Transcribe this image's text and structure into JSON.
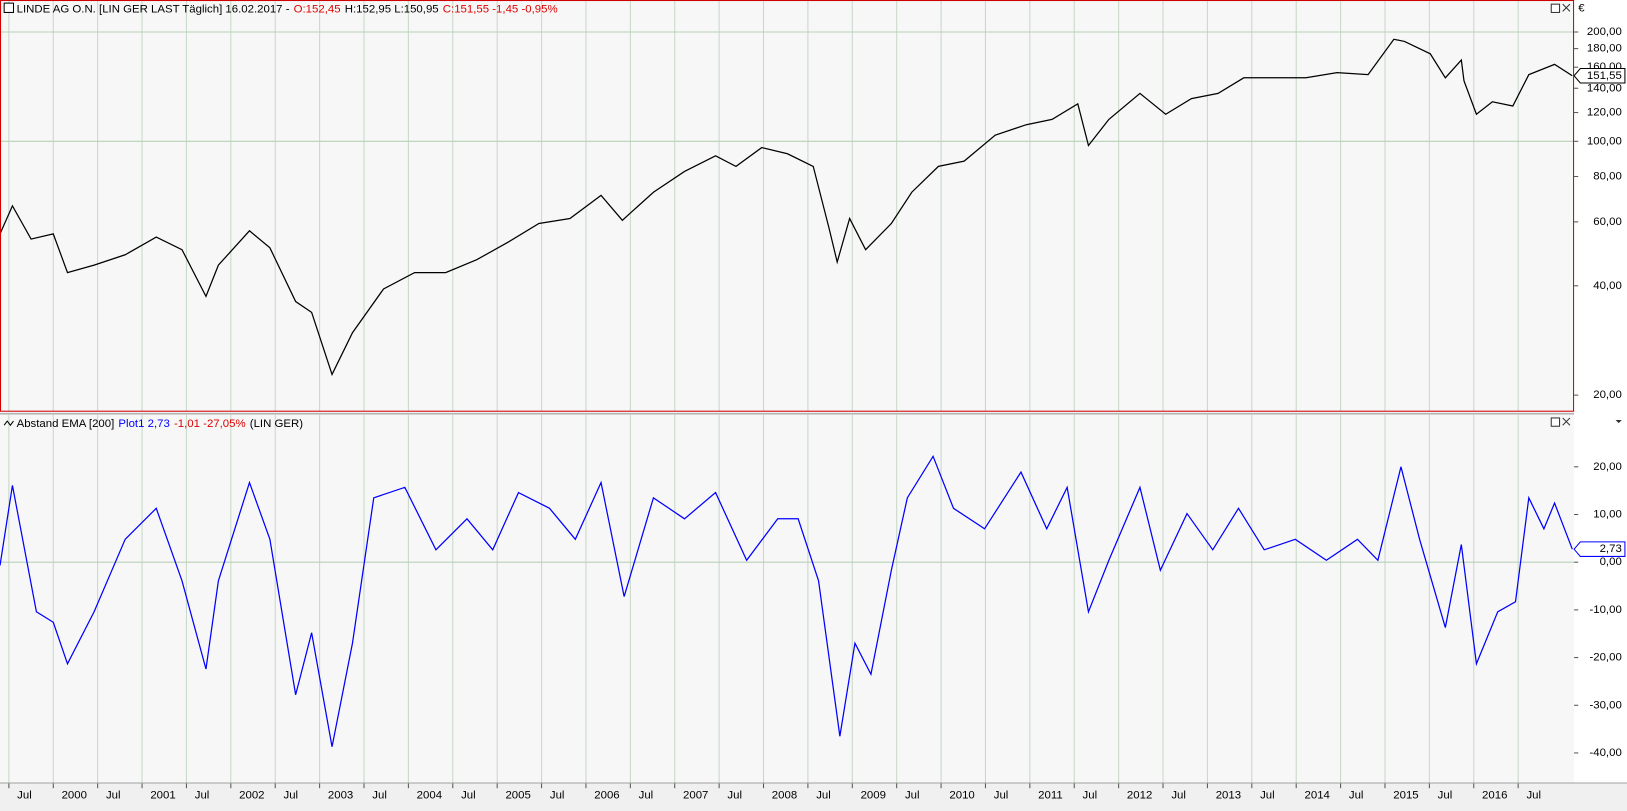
{
  "chart_data": [
    {
      "type": "line",
      "header": [
        {
          "text": "LINDE AG O.N. [LIN GER LAST Täglich] 16.02.2017 -",
          "color": "#000000"
        },
        {
          "text": "O:152,45",
          "color": "#e00000"
        },
        {
          "text": "H:152,95 L:150,95",
          "color": "#000000"
        },
        {
          "text": "C:151,55 -1,45 -0,95%",
          "color": "#e00000"
        }
      ],
      "log_scale": true,
      "color": "#000000",
      "x": [
        1999.4,
        1999.54,
        1999.75,
        2000.0,
        2000.16,
        2000.46,
        2000.81,
        2001.16,
        2001.45,
        2001.72,
        2001.86,
        2002.21,
        2002.44,
        2002.73,
        2002.91,
        2003.14,
        2003.37,
        2003.72,
        2004.07,
        2004.42,
        2004.77,
        2005.12,
        2005.47,
        2005.82,
        2006.17,
        2006.41,
        2006.76,
        2007.11,
        2007.46,
        2007.69,
        2007.98,
        2008.27,
        2008.56,
        2008.74,
        2008.83,
        2008.97,
        2009.15,
        2009.44,
        2009.67,
        2009.97,
        2010.26,
        2010.61,
        2010.96,
        2011.25,
        2011.54,
        2011.66,
        2011.89,
        2012.24,
        2012.53,
        2012.82,
        2013.12,
        2013.41,
        2013.76,
        2014.11,
        2014.46,
        2014.81,
        2015.1,
        2015.22,
        2015.51,
        2015.68,
        2015.86,
        2015.89,
        2016.03,
        2016.21,
        2016.44,
        2016.62,
        2016.91,
        2017.11
      ],
      "values": [
        55.6,
        66.4,
        53.8,
        55.6,
        43.5,
        45.6,
        48.7,
        54.5,
        50.3,
        37.4,
        45.6,
        56.7,
        50.9,
        36.2,
        33.8,
        22.8,
        29.7,
        39.2,
        43.5,
        43.5,
        47.2,
        52.7,
        59.4,
        61.3,
        71.0,
        60.6,
        72.4,
        82.6,
        91.2,
        85.3,
        96.1,
        92.4,
        85.3,
        57.4,
        46.5,
        61.3,
        50.3,
        59.4,
        72.4,
        85.3,
        88.2,
        104.0,
        111.1,
        114.9,
        126.8,
        97.4,
        114.9,
        135.5,
        118.7,
        131.1,
        135.5,
        149.6,
        149.6,
        149.6,
        154.6,
        152.6,
        191.0,
        188.4,
        174.2,
        149.6,
        167.4,
        146.7,
        118.7,
        128.5,
        125.1,
        152.6,
        162.9,
        151.55
      ],
      "last_value_label": "151,55",
      "xlim": [
        1999.4,
        2017.13
      ],
      "xticks": [
        {
          "value": 1999.5,
          "label": "Jul"
        },
        2000,
        {
          "value": 2000.5,
          "label": "Jul"
        },
        2001,
        {
          "value": 2001.5,
          "label": "Jul"
        },
        2002,
        {
          "value": 2002.5,
          "label": "Jul"
        },
        2003,
        {
          "value": 2003.5,
          "label": "Jul"
        },
        2004,
        {
          "value": 2004.5,
          "label": "Jul"
        },
        2005,
        {
          "value": 2005.5,
          "label": "Jul"
        },
        2006,
        {
          "value": 2006.5,
          "label": "Jul"
        },
        2007,
        {
          "value": 2007.5,
          "label": "Jul"
        },
        2008,
        {
          "value": 2008.5,
          "label": "Jul"
        },
        2009,
        {
          "value": 2009.5,
          "label": "Jul"
        },
        2010,
        {
          "value": 2010.5,
          "label": "Jul"
        },
        2011,
        {
          "value": 2011.5,
          "label": "Jul"
        },
        2012,
        {
          "value": 2012.5,
          "label": "Jul"
        },
        2013,
        {
          "value": 2013.5,
          "label": "Jul"
        },
        2014,
        {
          "value": 2014.5,
          "label": "Jul"
        },
        2015,
        {
          "value": 2015.5,
          "label": "Jul"
        },
        2016,
        {
          "value": 2016.5,
          "label": "Jul"
        }
      ],
      "ylim": [
        18,
        245
      ],
      "yticks": [
        {
          "value": 20,
          "label": "20,00"
        },
        {
          "value": 40,
          "label": "40,00"
        },
        {
          "value": 60,
          "label": "60,00"
        },
        {
          "value": 80,
          "label": "80,00"
        },
        {
          "value": 100,
          "label": "100,00"
        },
        {
          "value": 120,
          "label": "120,00"
        },
        {
          "value": 140,
          "label": "140,00"
        },
        {
          "value": 160,
          "label": "160,00"
        },
        {
          "value": 180,
          "label": "180,00"
        },
        {
          "value": 200,
          "label": "200,00"
        }
      ],
      "grid_lines_at": [
        100,
        200
      ]
    },
    {
      "type": "line",
      "header": [
        {
          "text": "Abstand EMA [200]",
          "color": "#000000"
        },
        {
          "text": "Plot1 2,73",
          "color": "#0000ff"
        },
        {
          "text": "-1,01 -27,05%",
          "color": "#e00000"
        },
        {
          "text": "(LIN GER)",
          "color": "#000000"
        }
      ],
      "log_scale": false,
      "color": "#0000ff",
      "x": [
        1999.4,
        1999.54,
        1999.81,
        2000.0,
        2000.16,
        2000.46,
        2000.81,
        2001.16,
        2001.45,
        2001.72,
        2001.86,
        2002.21,
        2002.44,
        2002.73,
        2002.91,
        2003.14,
        2003.37,
        2003.61,
        2003.96,
        2004.31,
        2004.66,
        2004.95,
        2005.24,
        2005.59,
        2005.88,
        2006.17,
        2006.43,
        2006.76,
        2007.11,
        2007.46,
        2007.81,
        2008.16,
        2008.39,
        2008.62,
        2008.86,
        2009.03,
        2009.21,
        2009.44,
        2009.62,
        2009.91,
        2010.14,
        2010.49,
        2010.9,
        2011.19,
        2011.42,
        2011.66,
        2011.89,
        2012.24,
        2012.47,
        2012.77,
        2013.06,
        2013.35,
        2013.64,
        2013.99,
        2014.34,
        2014.69,
        2014.92,
        2015.18,
        2015.39,
        2015.68,
        2015.86,
        2016.03,
        2016.27,
        2016.47,
        2016.62,
        2016.79,
        2016.91,
        2017.11
      ],
      "values": [
        -0.7,
        16.1,
        -10.4,
        -12.6,
        -21.3,
        -10.4,
        4.8,
        11.3,
        -3.9,
        -22.4,
        -3.9,
        16.7,
        4.8,
        -27.8,
        -14.8,
        -38.7,
        -17.0,
        13.5,
        15.7,
        2.6,
        9.1,
        2.6,
        14.6,
        11.3,
        4.8,
        16.7,
        -7.2,
        13.5,
        9.1,
        14.6,
        0.4,
        9.1,
        9.1,
        -3.9,
        -36.5,
        -17.0,
        -23.5,
        -1.7,
        13.5,
        22.2,
        11.3,
        7.0,
        18.9,
        7.0,
        15.7,
        -10.4,
        0.4,
        15.7,
        -1.7,
        10.2,
        2.6,
        11.3,
        2.6,
        4.8,
        0.4,
        4.8,
        0.4,
        20.0,
        4.8,
        -13.7,
        3.7,
        -21.3,
        -10.4,
        -8.3,
        13.5,
        7.0,
        12.4,
        2.73
      ],
      "last_value_label": "2,73",
      "xlim": [
        1999.4,
        2017.13
      ],
      "xticks": [
        {
          "value": 1999.5,
          "label": "Jul"
        },
        2000,
        {
          "value": 2000.5,
          "label": "Jul"
        },
        2001,
        {
          "value": 2001.5,
          "label": "Jul"
        },
        2002,
        {
          "value": 2002.5,
          "label": "Jul"
        },
        2003,
        {
          "value": 2003.5,
          "label": "Jul"
        },
        2004,
        {
          "value": 2004.5,
          "label": "Jul"
        },
        2005,
        {
          "value": 2005.5,
          "label": "Jul"
        },
        2006,
        {
          "value": 2006.5,
          "label": "Jul"
        },
        2007,
        {
          "value": 2007.5,
          "label": "Jul"
        },
        2008,
        {
          "value": 2008.5,
          "label": "Jul"
        },
        2009,
        {
          "value": 2009.5,
          "label": "Jul"
        },
        2010,
        {
          "value": 2010.5,
          "label": "Jul"
        },
        2011,
        {
          "value": 2011.5,
          "label": "Jul"
        },
        2012,
        {
          "value": 2012.5,
          "label": "Jul"
        },
        2013,
        {
          "value": 2013.5,
          "label": "Jul"
        },
        2014,
        {
          "value": 2014.5,
          "label": "Jul"
        },
        2015,
        {
          "value": 2015.5,
          "label": "Jul"
        },
        2016,
        {
          "value": 2016.5,
          "label": "Jul"
        }
      ],
      "ylim": [
        -46.3,
        30.9
      ],
      "yticks": [
        {
          "value": -40,
          "label": "-40,00"
        },
        {
          "value": -30,
          "label": "-30,00"
        },
        {
          "value": -20,
          "label": "-20,00"
        },
        {
          "value": -10,
          "label": "-10,00"
        },
        {
          "value": 0,
          "label": "0,00"
        },
        {
          "value": 10,
          "label": "10,00"
        },
        {
          "value": 20,
          "label": "20,00"
        }
      ],
      "grid_lines_at": [
        0
      ]
    }
  ]
}
